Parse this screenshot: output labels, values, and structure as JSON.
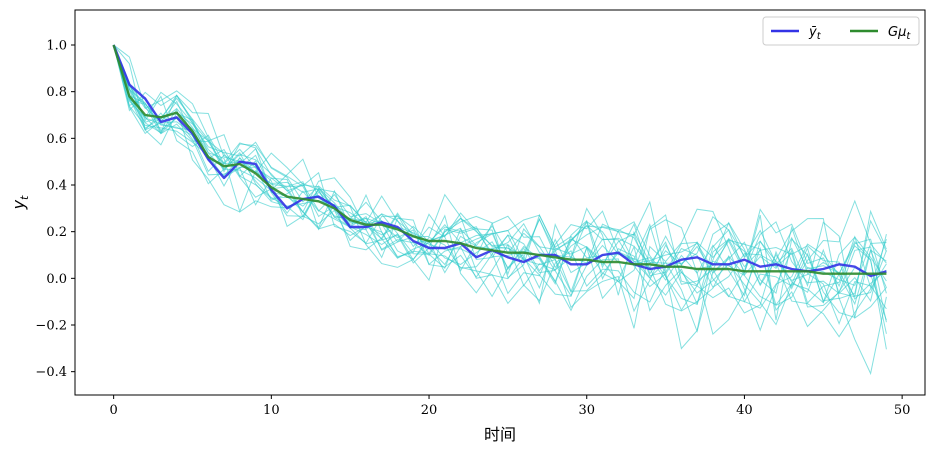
{
  "chart_data": {
    "type": "line",
    "title": "",
    "xlabel": "时间",
    "ylabel": "y_t",
    "xlim": [
      -2.45,
      51.45
    ],
    "ylim": [
      -0.5,
      1.15
    ],
    "xticks": [
      0,
      10,
      20,
      30,
      40,
      50
    ],
    "yticks": [
      -0.4,
      -0.2,
      0.0,
      0.2,
      0.4,
      0.6,
      0.8,
      1.0
    ],
    "xtick_labels": [
      "0",
      "10",
      "20",
      "30",
      "40",
      "50"
    ],
    "ytick_labels": [
      "−0.4",
      "−0.2",
      "0.0",
      "0.2",
      "0.4",
      "0.6",
      "0.8",
      "1.0"
    ],
    "legend_position": "top-right",
    "grid": false,
    "colors": {
      "mean": "#3333e6",
      "expected": "#2e8b2e",
      "sample": "#33cccc"
    },
    "series": [
      {
        "name": "ȳ_t",
        "role": "mean",
        "x": [
          0,
          1,
          2,
          3,
          4,
          5,
          6,
          7,
          8,
          9,
          10,
          11,
          12,
          13,
          14,
          15,
          16,
          17,
          18,
          19,
          20,
          21,
          22,
          23,
          24,
          25,
          26,
          27,
          28,
          29,
          30,
          31,
          32,
          33,
          34,
          35,
          36,
          37,
          38,
          39,
          40,
          41,
          42,
          43,
          44,
          45,
          46,
          47,
          48,
          49
        ],
        "values": [
          1.0,
          0.83,
          0.77,
          0.67,
          0.69,
          0.62,
          0.51,
          0.43,
          0.5,
          0.49,
          0.38,
          0.3,
          0.34,
          0.35,
          0.31,
          0.22,
          0.22,
          0.24,
          0.22,
          0.16,
          0.13,
          0.13,
          0.15,
          0.09,
          0.12,
          0.09,
          0.07,
          0.1,
          0.1,
          0.06,
          0.06,
          0.1,
          0.11,
          0.06,
          0.04,
          0.05,
          0.08,
          0.09,
          0.06,
          0.06,
          0.08,
          0.05,
          0.06,
          0.04,
          0.03,
          0.04,
          0.06,
          0.05,
          0.01,
          0.03
        ]
      },
      {
        "name": "Gμ_t",
        "role": "expected",
        "x": [
          0,
          1,
          2,
          3,
          4,
          5,
          6,
          7,
          8,
          9,
          10,
          11,
          12,
          13,
          14,
          15,
          16,
          17,
          18,
          19,
          20,
          21,
          22,
          23,
          24,
          25,
          26,
          27,
          28,
          29,
          30,
          31,
          32,
          33,
          34,
          35,
          36,
          37,
          38,
          39,
          40,
          41,
          42,
          43,
          44,
          45,
          46,
          47,
          48,
          49
        ],
        "values": [
          1.0,
          0.78,
          0.7,
          0.69,
          0.71,
          0.63,
          0.52,
          0.48,
          0.49,
          0.45,
          0.39,
          0.35,
          0.34,
          0.33,
          0.3,
          0.25,
          0.23,
          0.23,
          0.21,
          0.18,
          0.16,
          0.16,
          0.15,
          0.13,
          0.12,
          0.11,
          0.11,
          0.1,
          0.09,
          0.08,
          0.08,
          0.07,
          0.07,
          0.06,
          0.06,
          0.05,
          0.05,
          0.04,
          0.04,
          0.04,
          0.03,
          0.03,
          0.03,
          0.03,
          0.03,
          0.02,
          0.02,
          0.02,
          0.02,
          0.02
        ]
      }
    ],
    "samples": {
      "count": 20,
      "noise_start": 0.05,
      "noise_end": 0.12
    }
  },
  "legend": {
    "items": [
      {
        "label": "ȳ",
        "sub": "t",
        "color": "#3333e6"
      },
      {
        "label": "Gμ",
        "sub": "t",
        "color": "#2e8b2e"
      }
    ]
  }
}
